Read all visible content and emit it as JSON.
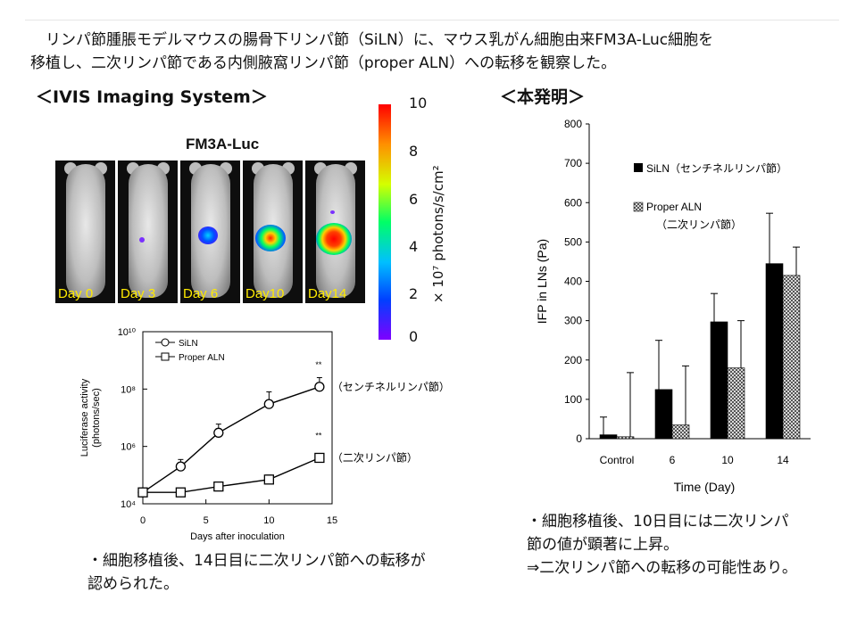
{
  "intro": "　リンパ節腫脹モデルマウスの腸骨下リンパ節（SiLN）に、マウス乳がん細胞由来FM3A-Luc細胞を\n移植し、二次リンパ節である内側腋窩リンパ節（proper ALN）への転移を観察した。",
  "ivis_heading": "＜IVIS Imaging System＞",
  "invention_heading": "＜本発明＞",
  "ivis": {
    "cell_line": "FM3A-Luc",
    "days": [
      "Day 0",
      "Day 3",
      "Day 6",
      "Day10",
      "Day14"
    ],
    "colorbar_ticks": [
      "10",
      "8",
      "6",
      "4",
      "2",
      "0"
    ],
    "colorbar_label": "× 10⁷ photons/s/cm²"
  },
  "chart_data": [
    {
      "type": "line",
      "x": [
        0,
        3,
        6,
        10,
        14
      ],
      "xlabel": "Days after inoculation",
      "ylabel": "Luciferase activity\n(photons/sec)",
      "yscale": "log",
      "xlim": [
        0,
        15
      ],
      "ylim": [
        10000,
        10000000000
      ],
      "xticks": [
        "0",
        "5",
        "10",
        "15"
      ],
      "yticks": [
        "10⁴",
        "10⁶",
        "10⁸",
        "10¹⁰"
      ],
      "series": [
        {
          "name": "SiLN",
          "marker": "circle",
          "values": [
            25000,
            200000,
            3000000,
            30000000,
            120000000
          ],
          "errors_upper": [
            30000,
            350000,
            6000000,
            80000000,
            250000000
          ],
          "annotation": "（センチネルリンパ節）",
          "significance": "**"
        },
        {
          "name": "Proper ALN",
          "marker": "square",
          "values": [
            25000,
            25000,
            40000,
            70000,
            400000
          ],
          "errors_upper": [
            30000,
            30000,
            50000,
            100000,
            500000
          ],
          "annotation": "（二次リンパ節）",
          "significance": "**"
        }
      ],
      "legend_position": "top-left"
    },
    {
      "type": "bar",
      "categories": [
        "Control",
        "6",
        "10",
        "14"
      ],
      "xlabel": "Time (Day)",
      "ylabel": "IFP in LNs (Pa)",
      "ylim": [
        0,
        800
      ],
      "yticks": [
        0,
        100,
        200,
        300,
        400,
        500,
        600,
        700,
        800
      ],
      "series": [
        {
          "name": "SiLN（センチネルリンパ節）",
          "color": "#000000",
          "values": [
            10,
            125,
            297,
            445
          ],
          "errors": [
            45,
            125,
            72,
            128
          ]
        },
        {
          "name": "Proper ALN\n（二次リンパ節）",
          "color": "#8c8c8c",
          "pattern": "checker",
          "values": [
            5,
            35,
            180,
            415
          ],
          "errors": [
            163,
            150,
            120,
            72
          ]
        }
      ],
      "legend_position": "top-left"
    }
  ],
  "note_left": "・細胞移植後、14日目に二次リンパ節への転移が\n認められた。",
  "note_right": "・細胞移植後、10日目には二次リンパ\n節の値が顕著に上昇。\n⇒二次リンパ節への転移の可能性あり。"
}
